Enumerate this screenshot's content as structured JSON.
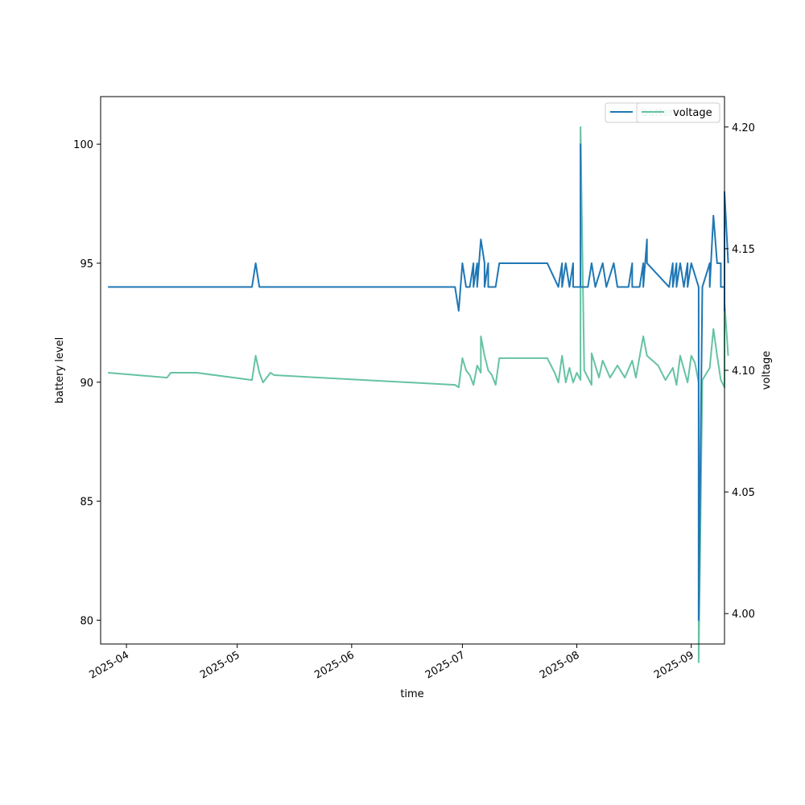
{
  "chart_data": {
    "type": "line",
    "title": "",
    "xlabel": "time",
    "ylabel_left": "battery level",
    "ylabel_right": "voltage",
    "x_ticks": [
      "2025-04",
      "2025-05",
      "2025-06",
      "2025-07",
      "2025-08",
      "2025-09"
    ],
    "xlim": [
      "2025-03-25",
      "2025-09-10"
    ],
    "y_left_ticks": [
      "80",
      "85",
      "90",
      "95",
      "100"
    ],
    "ylim_left": [
      79,
      102
    ],
    "y_right_ticks": [
      "4.00",
      "4.05",
      "4.10",
      "4.15",
      "4.20"
    ],
    "ylim_right": [
      3.9875,
      4.2125
    ],
    "grid": false,
    "legend": {
      "placement": "upper right",
      "entries": [
        "battery",
        "voltage"
      ]
    },
    "colors": {
      "battery": "#1f77b4",
      "voltage": "#66c2a5"
    },
    "series": [
      {
        "name": "battery",
        "axis": "left",
        "points": [
          [
            "2025-03-27",
            94
          ],
          [
            "2025-05-05",
            94
          ],
          [
            "2025-05-06",
            95
          ],
          [
            "2025-05-07",
            94
          ],
          [
            "2025-06-29",
            94
          ],
          [
            "2025-06-30",
            93
          ],
          [
            "2025-07-01",
            95
          ],
          [
            "2025-07-02",
            94
          ],
          [
            "2025-07-03",
            94
          ],
          [
            "2025-07-04",
            95
          ],
          [
            "2025-07-04",
            94
          ],
          [
            "2025-07-05",
            95
          ],
          [
            "2025-07-05",
            94
          ],
          [
            "2025-07-06",
            96
          ],
          [
            "2025-07-07",
            95
          ],
          [
            "2025-07-07",
            94
          ],
          [
            "2025-07-08",
            95
          ],
          [
            "2025-07-08",
            94
          ],
          [
            "2025-07-10",
            94
          ],
          [
            "2025-07-11",
            95
          ],
          [
            "2025-07-24",
            95
          ],
          [
            "2025-07-27",
            94
          ],
          [
            "2025-07-28",
            95
          ],
          [
            "2025-07-28",
            94
          ],
          [
            "2025-07-29",
            95
          ],
          [
            "2025-07-30",
            94
          ],
          [
            "2025-07-31",
            95
          ],
          [
            "2025-07-31",
            94
          ],
          [
            "2025-08-02",
            94
          ],
          [
            "2025-08-02",
            100
          ],
          [
            "2025-08-02",
            94
          ],
          [
            "2025-08-04",
            94
          ],
          [
            "2025-08-05",
            95
          ],
          [
            "2025-08-06",
            94
          ],
          [
            "2025-08-08",
            95
          ],
          [
            "2025-08-09",
            94
          ],
          [
            "2025-08-11",
            95
          ],
          [
            "2025-08-12",
            94
          ],
          [
            "2025-08-15",
            94
          ],
          [
            "2025-08-16",
            95
          ],
          [
            "2025-08-16",
            94
          ],
          [
            "2025-08-18",
            94
          ],
          [
            "2025-08-19",
            95
          ],
          [
            "2025-08-19",
            94
          ],
          [
            "2025-08-20",
            96
          ],
          [
            "2025-08-20",
            95
          ],
          [
            "2025-08-26",
            94
          ],
          [
            "2025-08-27",
            95
          ],
          [
            "2025-08-27",
            94
          ],
          [
            "2025-08-28",
            95
          ],
          [
            "2025-08-28",
            94
          ],
          [
            "2025-08-29",
            95
          ],
          [
            "2025-08-30",
            94
          ],
          [
            "2025-08-31",
            95
          ],
          [
            "2025-08-31",
            94
          ],
          [
            "2025-09-01",
            95
          ],
          [
            "2025-09-03",
            94
          ],
          [
            "2025-09-03",
            80
          ],
          [
            "2025-09-04",
            94
          ],
          [
            "2025-09-06",
            95
          ],
          [
            "2025-09-06",
            94
          ],
          [
            "2025-09-07",
            97
          ],
          [
            "2025-09-08",
            95
          ],
          [
            "2025-09-09",
            95
          ],
          [
            "2025-09-09",
            94
          ],
          [
            "2025-09-10",
            94
          ],
          [
            "2025-09-10",
            93
          ],
          [
            "2025-09-10",
            98
          ],
          [
            "2025-09-11",
            95
          ]
        ]
      },
      {
        "name": "voltage",
        "axis": "right",
        "points": [
          [
            "2025-03-27",
            4.099
          ],
          [
            "2025-04-12",
            4.097
          ],
          [
            "2025-04-13",
            4.099
          ],
          [
            "2025-04-20",
            4.099
          ],
          [
            "2025-05-05",
            4.096
          ],
          [
            "2025-05-06",
            4.106
          ],
          [
            "2025-05-07",
            4.099
          ],
          [
            "2025-05-08",
            4.095
          ],
          [
            "2025-05-10",
            4.099
          ],
          [
            "2025-05-11",
            4.098
          ],
          [
            "2025-06-29",
            4.094
          ],
          [
            "2025-06-30",
            4.093
          ],
          [
            "2025-07-01",
            4.105
          ],
          [
            "2025-07-02",
            4.1
          ],
          [
            "2025-07-03",
            4.098
          ],
          [
            "2025-07-04",
            4.094
          ],
          [
            "2025-07-05",
            4.102
          ],
          [
            "2025-07-06",
            4.099
          ],
          [
            "2025-07-06",
            4.114
          ],
          [
            "2025-07-07",
            4.106
          ],
          [
            "2025-07-08",
            4.1
          ],
          [
            "2025-07-09",
            4.098
          ],
          [
            "2025-07-10",
            4.094
          ],
          [
            "2025-07-11",
            4.105
          ],
          [
            "2025-07-24",
            4.105
          ],
          [
            "2025-07-26",
            4.099
          ],
          [
            "2025-07-27",
            4.095
          ],
          [
            "2025-07-28",
            4.106
          ],
          [
            "2025-07-29",
            4.095
          ],
          [
            "2025-07-30",
            4.101
          ],
          [
            "2025-07-31",
            4.095
          ],
          [
            "2025-08-01",
            4.099
          ],
          [
            "2025-08-02",
            4.096
          ],
          [
            "2025-08-02",
            4.2
          ],
          [
            "2025-08-03",
            4.1
          ],
          [
            "2025-08-05",
            4.094
          ],
          [
            "2025-08-05",
            4.107
          ],
          [
            "2025-08-07",
            4.097
          ],
          [
            "2025-08-08",
            4.104
          ],
          [
            "2025-08-10",
            4.097
          ],
          [
            "2025-08-12",
            4.102
          ],
          [
            "2025-08-14",
            4.097
          ],
          [
            "2025-08-16",
            4.104
          ],
          [
            "2025-08-17",
            4.097
          ],
          [
            "2025-08-19",
            4.114
          ],
          [
            "2025-08-20",
            4.106
          ],
          [
            "2025-08-23",
            4.102
          ],
          [
            "2025-08-25",
            4.096
          ],
          [
            "2025-08-27",
            4.101
          ],
          [
            "2025-08-28",
            4.094
          ],
          [
            "2025-08-29",
            4.106
          ],
          [
            "2025-08-31",
            4.095
          ],
          [
            "2025-09-01",
            4.106
          ],
          [
            "2025-09-02",
            4.103
          ],
          [
            "2025-09-03",
            4.095
          ],
          [
            "2025-09-03",
            3.98
          ],
          [
            "2025-09-04",
            4.096
          ],
          [
            "2025-09-06",
            4.101
          ],
          [
            "2025-09-07",
            4.117
          ],
          [
            "2025-09-08",
            4.106
          ],
          [
            "2025-09-09",
            4.096
          ],
          [
            "2025-09-10",
            4.093
          ],
          [
            "2025-09-10",
            4.128
          ],
          [
            "2025-09-11",
            4.106
          ]
        ]
      }
    ]
  }
}
